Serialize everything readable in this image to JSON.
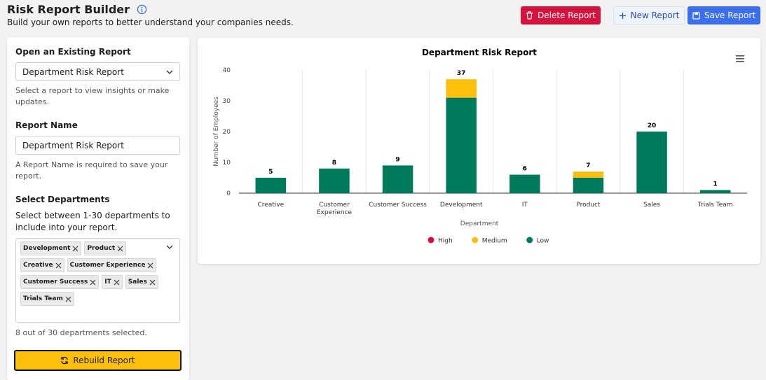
{
  "header": {
    "title": "Risk Report Builder",
    "subtitle": "Build your own reports to better understand your companies needs."
  },
  "actions": {
    "delete": "Delete Report",
    "new": "New Report",
    "save": "Save Report"
  },
  "sidebar": {
    "open_label": "Open an Existing Report",
    "open_value": "Department Risk Report",
    "open_help": "Select a report to view insights or make updates.",
    "name_label": "Report Name",
    "name_value": "Department Risk Report",
    "name_help": "A Report Name is required to save your report.",
    "departments_label": "Select Departments",
    "departments_help": "Select between 1-30 departments to include into your report.",
    "tags": [
      "Development",
      "Product",
      "Creative",
      "Customer Experience",
      "Customer Success",
      "IT",
      "Sales",
      "Trials Team"
    ],
    "selected_count": "8 out of 30 departments selected.",
    "rebuild": "Rebuild Report"
  },
  "chart_data": {
    "type": "stacked_bar",
    "title": "Department Risk Report",
    "x_label": "Department",
    "y_label": "Number of Employees",
    "categories": [
      "Creative",
      "Customer Experience",
      "Customer Success",
      "Development",
      "IT",
      "Product",
      "Sales",
      "Trials Team"
    ],
    "series": [
      {
        "name": "High",
        "color": "#d0103a",
        "values": [
          0,
          0,
          0,
          0,
          0,
          0,
          0,
          0
        ]
      },
      {
        "name": "Medium",
        "color": "#fbbf0c",
        "values": [
          0,
          0,
          0,
          6,
          0,
          2,
          0,
          0
        ]
      },
      {
        "name": "Low",
        "color": "#007a5c",
        "values": [
          5,
          8,
          9,
          31,
          6,
          5,
          20,
          1
        ]
      }
    ],
    "stack_labels": [
      5,
      8,
      9,
      37,
      6,
      7,
      20,
      1
    ],
    "ylim": [
      0,
      40
    ],
    "yticks": [
      0,
      10,
      20,
      30,
      40
    ],
    "legend": "bottom"
  }
}
